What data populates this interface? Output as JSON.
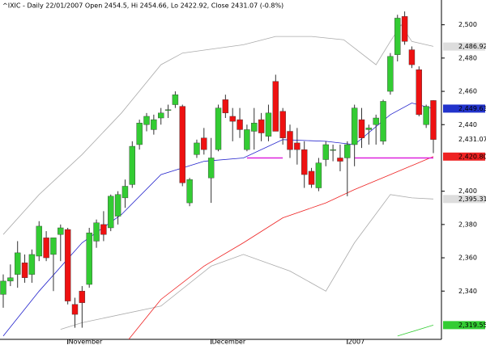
{
  "chart_data": {
    "type": "candlestick",
    "title": "^IXIC - Daily 22/01/2007 Open 2454.5, Hi 2454.66, Lo 2422.92, Close 2431.07 (-0.8%)",
    "categories": [
      null,
      null,
      null,
      null,
      null,
      null,
      null,
      null,
      null,
      "November",
      null,
      null,
      null,
      null,
      null,
      null,
      null,
      null,
      null,
      null,
      null,
      null,
      null,
      null,
      null,
      null,
      null,
      null,
      null,
      "December",
      null,
      null,
      null,
      null,
      null,
      null,
      null,
      null,
      null,
      null,
      null,
      null,
      null,
      null,
      null,
      null,
      null,
      null,
      "2007",
      null,
      null,
      null,
      null,
      null,
      null,
      null,
      null,
      null,
      null,
      null,
      null
    ],
    "open": [
      2338,
      2346,
      2350,
      2357,
      2350,
      2361,
      2372,
      2362,
      2374,
      2377,
      2332,
      2340,
      2344,
      2370,
      2380,
      2378,
      2385,
      2396,
      2404,
      2428,
      2440,
      2437,
      2444,
      2449,
      2452,
      2451,
      2393,
      2422,
      2432,
      2408,
      2425,
      2455,
      2445,
      2443,
      2425,
      2436,
      2443,
      2433,
      2466,
      2448,
      2436,
      2429,
      2425,
      2412,
      2402,
      2419,
      2425,
      2420,
      2420,
      2428,
      2443,
      2437,
      2440,
      2430,
      2460,
      2482,
      2505,
      2485,
      2473,
      2440,
      2454.5
    ],
    "high": [
      2350,
      2356,
      2370,
      2362,
      2365,
      2382,
      2376,
      2372,
      2380,
      2378,
      2336,
      2343,
      2378,
      2383,
      2388,
      2398,
      2400,
      2407,
      2430,
      2443,
      2447,
      2446,
      2450,
      2452,
      2460,
      2452,
      2408,
      2431,
      2438,
      2432,
      2452,
      2458,
      2450,
      2450,
      2440,
      2450,
      2447,
      2452,
      2470,
      2450,
      2440,
      2438,
      2430,
      2414,
      2420,
      2430,
      2428,
      2428,
      2430,
      2452,
      2450,
      2440,
      2446,
      2455,
      2483,
      2506,
      2508,
      2487,
      2475,
      2452,
      2454.66
    ],
    "low": [
      2330,
      2343,
      2342,
      2345,
      2345,
      2358,
      2358,
      2340,
      2358,
      2332,
      2318,
      2318,
      2342,
      2366,
      2370,
      2376,
      2380,
      2390,
      2402,
      2425,
      2436,
      2434,
      2440,
      2444,
      2450,
      2403,
      2391,
      2420,
      2422,
      2393,
      2424,
      2444,
      2430,
      2432,
      2424,
      2425,
      2430,
      2430,
      2436,
      2428,
      2420,
      2416,
      2402,
      2402,
      2400,
      2415,
      2418,
      2412,
      2397,
      2415,
      2426,
      2428,
      2428,
      2428,
      2458,
      2478,
      2488,
      2474,
      2445,
      2438,
      2422.92
    ],
    "close": [
      2346,
      2348,
      2363,
      2348,
      2362,
      2379,
      2360,
      2372,
      2378,
      2334,
      2326,
      2333,
      2375,
      2381,
      2374,
      2397,
      2398,
      2403,
      2427,
      2441,
      2445,
      2443,
      2447,
      2449,
      2458,
      2405,
      2407,
      2429,
      2425,
      2420,
      2450,
      2447,
      2442,
      2437,
      2437,
      2441,
      2435,
      2447,
      2436,
      2432,
      2425,
      2425,
      2410,
      2404,
      2417,
      2428,
      2425,
      2418,
      2428,
      2450,
      2432,
      2438,
      2444,
      2454,
      2481,
      2504,
      2490,
      2476,
      2446,
      2451,
      2431.07
    ],
    "up_color": "#33cc33",
    "down_color": "#ee1111",
    "overlays": [
      {
        "color": "#aaaaaa",
        "x": [
          0,
          5,
          11,
          16.5,
          22,
          25,
          33.5,
          38,
          43,
          47.5,
          52,
          54,
          55.5,
          57,
          60
        ],
        "values": [
          2374,
          2398,
          2422,
          2447,
          2476,
          2483,
          2488,
          2493,
          2493,
          2491,
          2476,
          2490,
          2500,
          2490,
          2487
        ]
      },
      {
        "color": "#aaaaaa",
        "x": [
          8,
          11,
          22,
          29,
          33.5,
          40,
          45,
          49,
          54,
          57,
          60
        ],
        "values": [
          2317,
          2321,
          2331,
          2355,
          2362,
          2352,
          2340,
          2369,
          2398,
          2396,
          2395.31
        ]
      },
      {
        "color": "#2222cc",
        "x": [
          0,
          5,
          11,
          16.5,
          22,
          28,
          33.5,
          39,
          45,
          49,
          54,
          57,
          60
        ],
        "values": [
          2313,
          2340,
          2369,
          2386,
          2410,
          2418,
          2420,
          2431,
          2430,
          2428,
          2446,
          2453,
          2449.63
        ]
      },
      {
        "color": "#ee2222",
        "x": [
          17.5,
          22,
          28,
          33.5,
          39,
          45,
          49,
          54,
          60
        ],
        "values": [
          2311,
          2335,
          2355,
          2369,
          2384,
          2393,
          2401,
          2410,
          2420.8
        ]
      },
      {
        "color": "#33cc33",
        "x": [
          55,
          60
        ],
        "values": [
          2313,
          2319.55
        ]
      },
      {
        "color": "#dd22dd",
        "x": [
          34,
          39
        ],
        "values": [
          2420,
          2420
        ]
      },
      {
        "color": "#dd22dd",
        "x": [
          49,
          60
        ],
        "values": [
          2420,
          2420
        ]
      }
    ],
    "end_labels": [
      {
        "value": 2486.92,
        "label": "2,486.92",
        "color": "#dddddd"
      },
      {
        "value": 2449.63,
        "label": "2,449.63",
        "color": "#2233cc"
      },
      {
        "value": 2431.07,
        "label": "2,431.07",
        "color": "#ffffff"
      },
      {
        "value": 2420.8,
        "label": "2,420.80",
        "color": "#ee2222"
      },
      {
        "value": 2395.31,
        "label": "2,395.31",
        "color": "#dddddd"
      },
      {
        "value": 2319.55,
        "label": "2,319.55",
        "color": "#33cc33"
      }
    ],
    "ylim": [
      2311,
      2511
    ],
    "yticks": [
      {
        "value": 2340,
        "label": "2,340"
      },
      {
        "value": 2360,
        "label": "2,360"
      },
      {
        "value": 2380,
        "label": "2,380"
      },
      {
        "value": 2400,
        "label": "2,400"
      },
      {
        "value": 2440,
        "label": "2,440"
      },
      {
        "value": 2460,
        "label": "2,460"
      },
      {
        "value": 2480,
        "label": "2,480"
      },
      {
        "value": 2500,
        "label": "2,500"
      }
    ]
  }
}
